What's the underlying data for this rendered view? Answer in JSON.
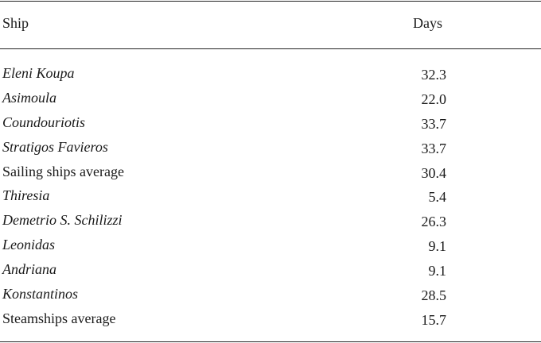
{
  "table": {
    "headers": {
      "ship": "Ship",
      "days": "Days"
    },
    "rows": [
      {
        "ship": "Eleni Koupa",
        "days": "32.3",
        "italic": true
      },
      {
        "ship": "Asimoula",
        "days": "22.0",
        "italic": true
      },
      {
        "ship": "Coundouriotis",
        "days": "33.7",
        "italic": true
      },
      {
        "ship": "Stratigos Favieros",
        "days": "33.7",
        "italic": true
      },
      {
        "ship": "Sailing ships average",
        "days": "30.4",
        "italic": false
      },
      {
        "ship": "Thiresia",
        "days": "5.4",
        "italic": true
      },
      {
        "ship": "Demetrio S. Schilizzi",
        "days": "26.3",
        "italic": true
      },
      {
        "ship": "Leonidas",
        "days": "9.1",
        "italic": true
      },
      {
        "ship": "Andriana",
        "days": "9.1",
        "italic": true
      },
      {
        "ship": "Konstantinos",
        "days": "28.5",
        "italic": true
      },
      {
        "ship": "Steamships average",
        "days": "15.7",
        "italic": false
      }
    ]
  }
}
